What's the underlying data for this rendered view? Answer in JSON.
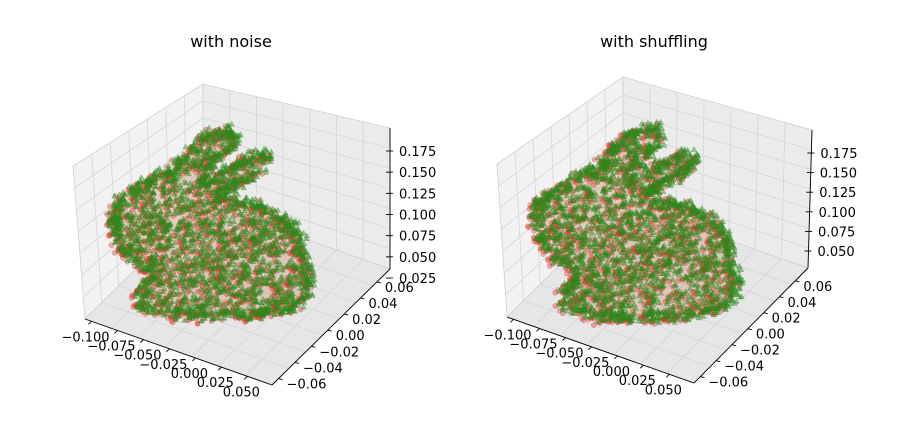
{
  "chart_data": [
    {
      "type": "scatter",
      "subtype": "3d",
      "title": "with noise",
      "series": [
        {
          "color": "#e8261f",
          "marker": "circle"
        },
        {
          "color": "#2a8a1c",
          "marker": "triangle"
        }
      ],
      "x_ticks": [
        "−0.100",
        "−0.075",
        "−0.050",
        "−0.025",
        "0.000",
        "0.025",
        "0.050"
      ],
      "y_ticks": [
        "−0.06",
        "−0.04",
        "−0.02",
        "0.00",
        "0.02",
        "0.04",
        "0.06"
      ],
      "z_ticks": [
        "0.025",
        "0.050",
        "0.075",
        "0.100",
        "0.125",
        "0.150",
        "0.175"
      ],
      "xlim": [
        -0.1,
        0.06
      ],
      "ylim": [
        -0.07,
        0.07
      ],
      "zlim": [
        0.02,
        0.19
      ],
      "grid": true
    },
    {
      "type": "scatter",
      "subtype": "3d",
      "title": "with shuffling",
      "series": [
        {
          "color": "#e8261f",
          "marker": "circle"
        },
        {
          "color": "#2a8a1c",
          "marker": "triangle"
        }
      ],
      "x_ticks": [
        "−0.100",
        "−0.075",
        "−0.050",
        "−0.025",
        "0.000",
        "0.025",
        "0.050"
      ],
      "y_ticks": [
        "−0.06",
        "−0.04",
        "−0.02",
        "0.00",
        "0.02",
        "0.04",
        "0.06"
      ],
      "z_ticks": [
        "0.050",
        "0.075",
        "0.100",
        "0.125",
        "0.150",
        "0.175"
      ],
      "xlim": [
        -0.1,
        0.06
      ],
      "ylim": [
        -0.07,
        0.07
      ],
      "zlim": [
        0.035,
        0.19
      ],
      "grid": true
    }
  ]
}
